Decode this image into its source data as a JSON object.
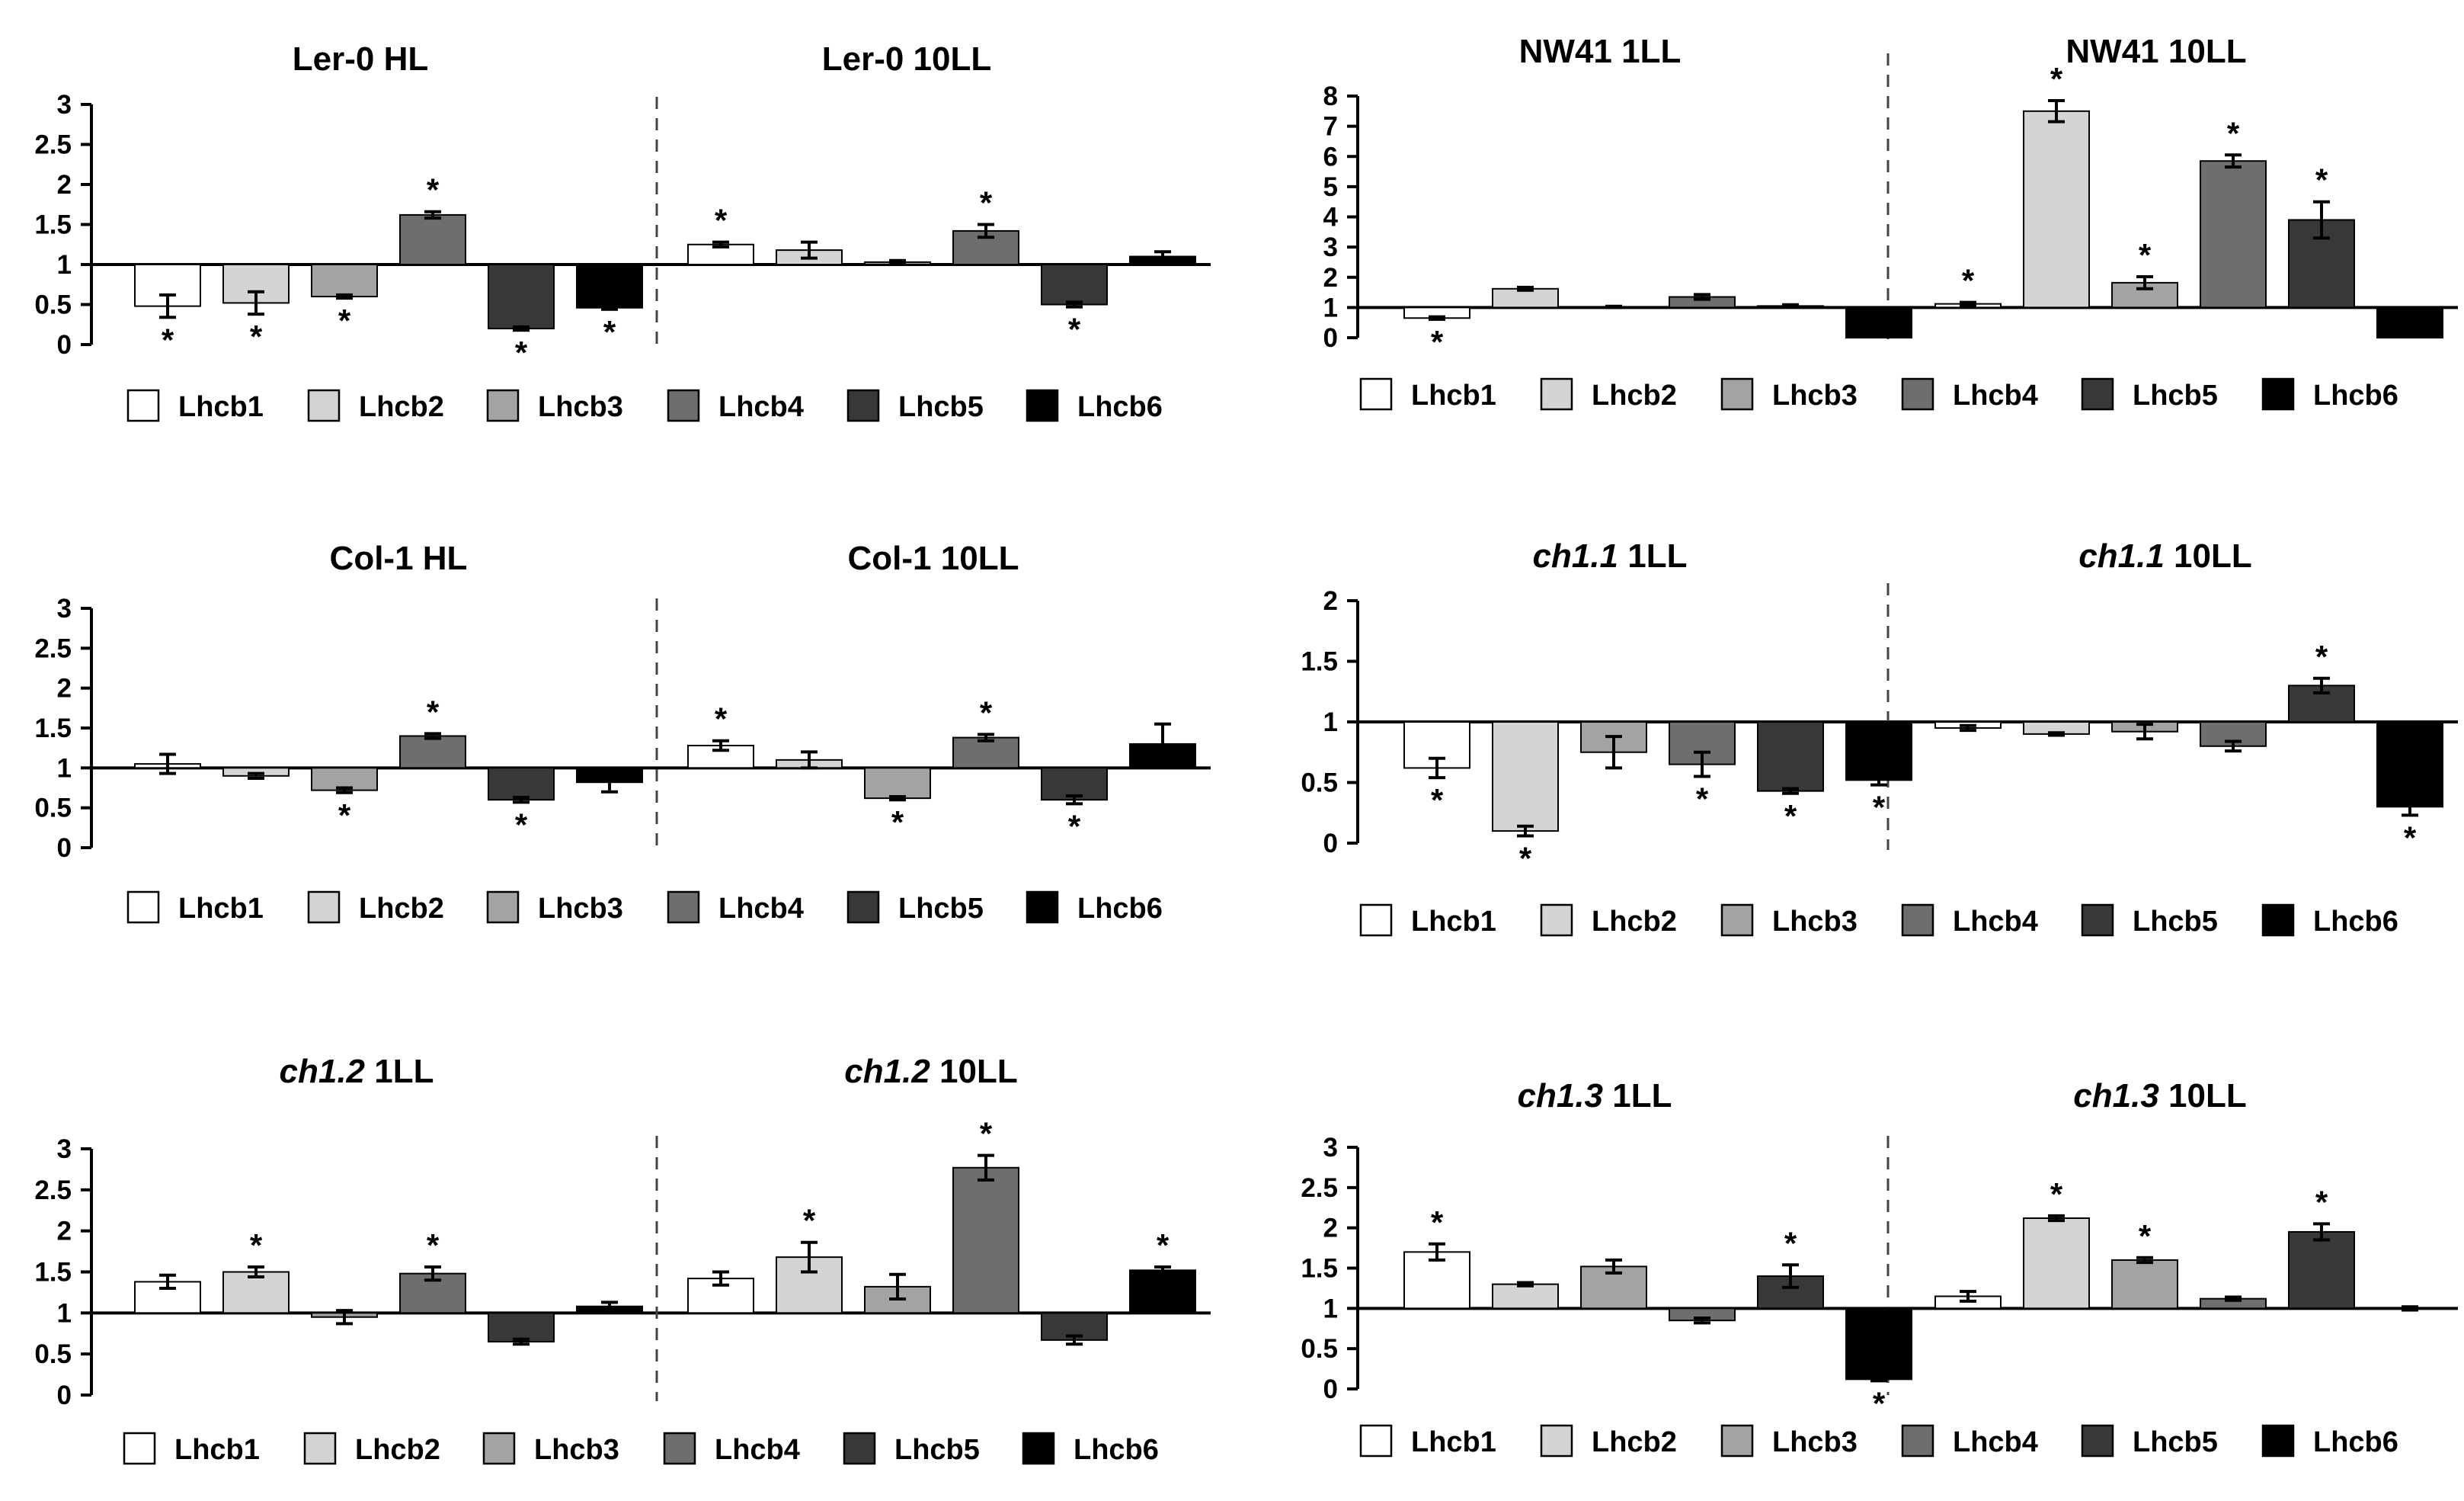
{
  "figure_colors": {
    "Lhcb1": "#ffffff",
    "Lhcb2": "#d4d4d4",
    "Lhcb3": "#a3a3a3",
    "Lhcb4": "#6e6e6e",
    "Lhcb5": "#383838",
    "Lhcb6": "#000000"
  },
  "chart_data": [
    {
      "type": "bar",
      "panel": "ler0",
      "ylim": [
        0,
        3
      ],
      "yticks": [
        "0",
        "0.5",
        "1",
        "1.5",
        "2",
        "2.5",
        "3"
      ],
      "baseline": 1,
      "categories": [
        "Lhcb1",
        "Lhcb2",
        "Lhcb3",
        "Lhcb4",
        "Lhcb5",
        "Lhcb6"
      ],
      "groups": [
        {
          "title": "Ler-0 HL",
          "title_italic": "",
          "values": [
            0.48,
            0.52,
            0.6,
            1.62,
            0.2,
            0.46
          ],
          "errors": [
            0.14,
            0.14,
            0.02,
            0.04,
            0.02,
            0.02
          ],
          "sig": [
            true,
            true,
            true,
            true,
            true,
            true
          ]
        },
        {
          "title": "Ler-0 10LL",
          "title_italic": "",
          "values": [
            1.25,
            1.18,
            1.03,
            1.42,
            0.5,
            1.1
          ],
          "errors": [
            0.03,
            0.1,
            0.02,
            0.08,
            0.03,
            0.06
          ],
          "sig": [
            true,
            false,
            false,
            true,
            true,
            false
          ]
        }
      ]
    },
    {
      "type": "bar",
      "panel": "nw41",
      "ylim": [
        0,
        8
      ],
      "yticks": [
        "0",
        "1",
        "2",
        "3",
        "4",
        "5",
        "6",
        "7",
        "8"
      ],
      "baseline": 1,
      "categories": [
        "Lhcb1",
        "Lhcb2",
        "Lhcb3",
        "Lhcb4",
        "Lhcb5",
        "Lhcb6"
      ],
      "groups": [
        {
          "title": "NW41 1LL",
          "title_italic": "",
          "values": [
            0.65,
            1.62,
            1.02,
            1.35,
            1.05,
            0.0
          ],
          "errors": [
            0.04,
            0.05,
            0.02,
            0.08,
            0.04,
            0.0
          ],
          "sig": [
            true,
            false,
            false,
            false,
            false,
            false
          ]
        },
        {
          "title": "NW41 10LL",
          "title_italic": "",
          "values": [
            1.12,
            7.5,
            1.82,
            5.85,
            3.9,
            0.0
          ],
          "errors": [
            0.05,
            0.35,
            0.2,
            0.2,
            0.6,
            0.0
          ],
          "sig": [
            true,
            true,
            true,
            true,
            true,
            false
          ]
        }
      ]
    },
    {
      "type": "bar",
      "panel": "col1",
      "ylim": [
        0,
        3
      ],
      "yticks": [
        "0",
        "0.5",
        "1",
        "1.5",
        "2",
        "2.5",
        "3"
      ],
      "baseline": 1,
      "categories": [
        "Lhcb1",
        "Lhcb2",
        "Lhcb3",
        "Lhcb4",
        "Lhcb5",
        "Lhcb6"
      ],
      "groups": [
        {
          "title": "Col-1 HL",
          "title_italic": "",
          "values": [
            1.05,
            0.9,
            0.72,
            1.4,
            0.6,
            0.82
          ],
          "errors": [
            0.12,
            0.03,
            0.03,
            0.03,
            0.03,
            0.12
          ],
          "sig": [
            false,
            false,
            true,
            true,
            true,
            false
          ]
        },
        {
          "title": "Col-1 10LL",
          "title_italic": "",
          "values": [
            1.28,
            1.1,
            0.62,
            1.38,
            0.6,
            1.3
          ],
          "errors": [
            0.06,
            0.1,
            0.02,
            0.04,
            0.05,
            0.25
          ],
          "sig": [
            true,
            false,
            true,
            true,
            true,
            false
          ]
        }
      ]
    },
    {
      "type": "bar",
      "panel": "ch11",
      "ylim": [
        0,
        2
      ],
      "yticks": [
        "0",
        "0.5",
        "1",
        "1.5",
        "2"
      ],
      "baseline": 1,
      "categories": [
        "Lhcb1",
        "Lhcb2",
        "Lhcb3",
        "Lhcb4",
        "Lhcb5",
        "Lhcb6"
      ],
      "groups": [
        {
          "title": " 1LL",
          "title_italic": "ch1.1",
          "values": [
            0.62,
            0.1,
            0.75,
            0.65,
            0.43,
            0.52
          ],
          "errors": [
            0.08,
            0.04,
            0.13,
            0.1,
            0.02,
            0.04
          ],
          "sig": [
            true,
            true,
            false,
            true,
            true,
            true
          ]
        },
        {
          "title": " 10LL",
          "title_italic": "ch1.1",
          "values": [
            0.95,
            0.9,
            0.92,
            0.8,
            1.3,
            0.3
          ],
          "errors": [
            0.02,
            0.01,
            0.06,
            0.04,
            0.06,
            0.07
          ],
          "sig": [
            false,
            false,
            false,
            false,
            true,
            true
          ]
        }
      ]
    },
    {
      "type": "bar",
      "panel": "ch12",
      "ylim": [
        0,
        3
      ],
      "yticks": [
        "0",
        "0.5",
        "1",
        "1.5",
        "2",
        "2.5",
        "3"
      ],
      "baseline": 1,
      "categories": [
        "Lhcb1",
        "Lhcb2",
        "Lhcb3",
        "Lhcb4",
        "Lhcb5",
        "Lhcb6"
      ],
      "groups": [
        {
          "title": " 1LL",
          "title_italic": "ch1.2",
          "values": [
            1.38,
            1.5,
            0.95,
            1.48,
            0.65,
            1.08
          ],
          "errors": [
            0.08,
            0.06,
            0.08,
            0.08,
            0.03,
            0.05
          ],
          "sig": [
            false,
            true,
            false,
            true,
            false,
            false
          ]
        },
        {
          "title": " 10LL",
          "title_italic": "ch1.2",
          "values": [
            1.42,
            1.68,
            1.32,
            2.77,
            0.67,
            1.52
          ],
          "errors": [
            0.08,
            0.18,
            0.15,
            0.15,
            0.05,
            0.04
          ],
          "sig": [
            false,
            true,
            false,
            true,
            false,
            true
          ]
        }
      ]
    },
    {
      "type": "bar",
      "panel": "ch13",
      "ylim": [
        0,
        3
      ],
      "yticks": [
        "0",
        "0.5",
        "1",
        "1.5",
        "2",
        "2.5",
        "3"
      ],
      "baseline": 1,
      "categories": [
        "Lhcb1",
        "Lhcb2",
        "Lhcb3",
        "Lhcb4",
        "Lhcb5",
        "Lhcb6"
      ],
      "groups": [
        {
          "title": " 1LL",
          "title_italic": "ch1.3",
          "values": [
            1.7,
            1.3,
            1.52,
            0.85,
            1.4,
            0.12
          ],
          "errors": [
            0.1,
            0.02,
            0.08,
            0.03,
            0.14,
            0.02
          ],
          "sig": [
            true,
            false,
            false,
            false,
            true,
            true
          ]
        },
        {
          "title": " 10LL",
          "title_italic": "ch1.3",
          "values": [
            1.15,
            2.12,
            1.6,
            1.12,
            1.95,
            1.0
          ],
          "errors": [
            0.06,
            0.03,
            0.03,
            0.02,
            0.1,
            0.02
          ],
          "sig": [
            false,
            true,
            true,
            false,
            true,
            false
          ]
        }
      ]
    }
  ]
}
